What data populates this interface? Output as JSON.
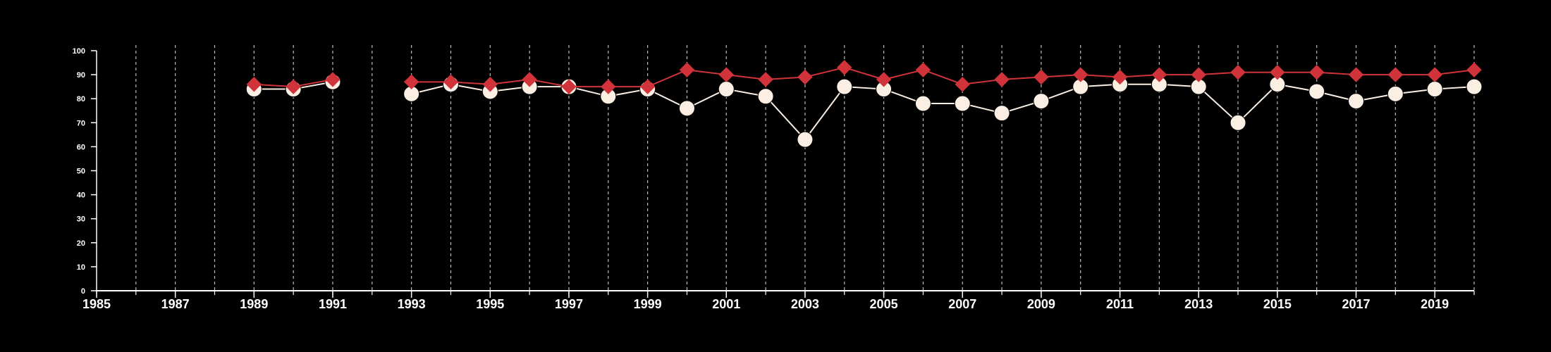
{
  "chart_data": {
    "type": "line",
    "title": "",
    "xlabel": "",
    "ylabel": "",
    "xlim": [
      1985,
      2020
    ],
    "ylim": [
      0,
      100
    ],
    "y_ticks": [
      0,
      10,
      20,
      30,
      40,
      50,
      60,
      70,
      80,
      90,
      100
    ],
    "x_ticks": [
      1985,
      1987,
      1989,
      1991,
      1993,
      1995,
      1997,
      1999,
      2001,
      2003,
      2005,
      2007,
      2009,
      2011,
      2013,
      2015,
      2017,
      2019
    ],
    "vertical_grid": "dashed, one per year",
    "background": "#000000",
    "axis_color": "#ffffff",
    "series": [
      {
        "marker": "diamond",
        "color": "#d0343a",
        "x": [
          1989,
          1990,
          1991,
          1993,
          1994,
          1995,
          1996,
          1997,
          1998,
          1999,
          2000,
          2001,
          2002,
          2003,
          2004,
          2005,
          2006,
          2007,
          2008,
          2009,
          2010,
          2011,
          2012,
          2013,
          2014,
          2015,
          2016,
          2017,
          2018,
          2019,
          2020
        ],
        "values": [
          86,
          85,
          88,
          87,
          87,
          86,
          88,
          85,
          85,
          85,
          92,
          90,
          88,
          89,
          93,
          88,
          92,
          86,
          88,
          89,
          90,
          89,
          90,
          90,
          91,
          91,
          91,
          90,
          90,
          90,
          92
        ]
      },
      {
        "marker": "circle",
        "color": "#fbeee2",
        "x": [
          1989,
          1990,
          1991,
          1993,
          1994,
          1995,
          1996,
          1997,
          1998,
          1999,
          2000,
          2001,
          2002,
          2003,
          2004,
          2005,
          2006,
          2007,
          2008,
          2009,
          2010,
          2011,
          2012,
          2013,
          2014,
          2015,
          2016,
          2017,
          2018,
          2019,
          2020
        ],
        "values": [
          84,
          84,
          87,
          82,
          86,
          83,
          85,
          85,
          81,
          84,
          76,
          84,
          81,
          63,
          85,
          84,
          78,
          78,
          74,
          79,
          85,
          86,
          86,
          85,
          70,
          86,
          83,
          79,
          82,
          84,
          85
        ]
      }
    ]
  }
}
